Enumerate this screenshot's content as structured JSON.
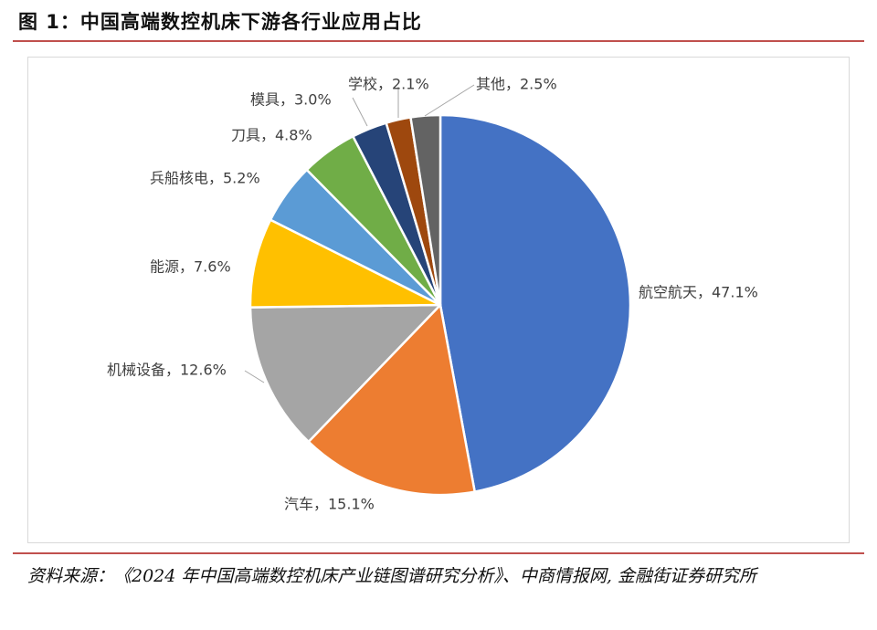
{
  "title": "图 1：中国高端数控机床下游各行业应用占比",
  "source": "资料来源：《2024 年中国高端数控机床产业链图谱研究分析》、中商情报网, 金融街证券研究所",
  "chart_data": {
    "type": "pie",
    "title": "",
    "start_angle_deg": 0,
    "direction": "clockwise",
    "slices": [
      {
        "label": "航空航天",
        "value": 47.1,
        "display": "航空航天，47.1%",
        "color": "#4472c4"
      },
      {
        "label": "汽车",
        "value": 15.1,
        "display": "汽车，15.1%",
        "color": "#ed7d31"
      },
      {
        "label": "机械设备",
        "value": 12.6,
        "display": "机械设备，12.6%",
        "color": "#a5a5a5"
      },
      {
        "label": "能源",
        "value": 7.6,
        "display": "能源，7.6%",
        "color": "#ffc000"
      },
      {
        "label": "兵船核电",
        "value": 5.2,
        "display": "兵船核电，5.2%",
        "color": "#5b9bd5"
      },
      {
        "label": "刀具",
        "value": 4.8,
        "display": "刀具，4.8%",
        "color": "#70ad47"
      },
      {
        "label": "模具",
        "value": 3.0,
        "display": "模具，3.0%",
        "color": "#264478"
      },
      {
        "label": "学校",
        "value": 2.1,
        "display": "学校，2.1%",
        "color": "#9e480e"
      },
      {
        "label": "其他",
        "value": 2.5,
        "display": "其他，2.5%",
        "color": "#636363"
      }
    ]
  }
}
